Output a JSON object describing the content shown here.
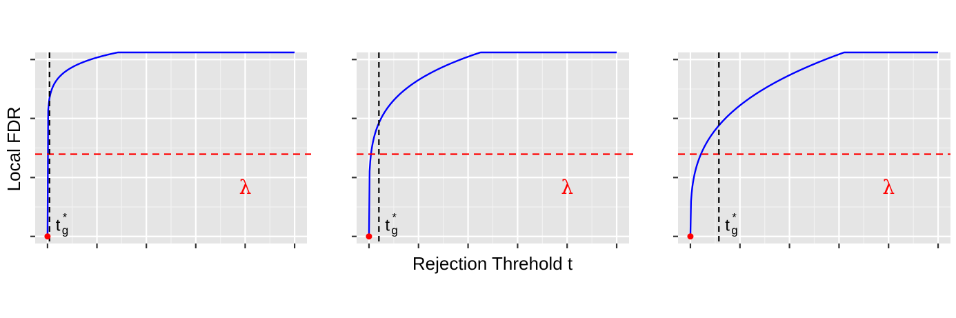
{
  "xlabel": "Rejection Threhold t",
  "ylabel": "Local FDR",
  "colors": {
    "panel_bg": "#e5e5e5",
    "grid_major": "#ffffff",
    "grid_minor": "#f2f2f2",
    "curve": "#0000ff",
    "lambda_line": "#ff0000",
    "threshold_line": "#000000",
    "point": "#ff0000"
  },
  "chart_data": [
    {
      "type": "line",
      "panel": "left",
      "xlim": [
        -0.05,
        1.05
      ],
      "ylim": [
        -0.04,
        1.04
      ],
      "x_ticks": [
        0,
        0.2,
        0.4,
        0.6,
        0.8,
        1.0
      ],
      "y_ticks": [
        0,
        0.333,
        0.667,
        1.0
      ],
      "curve": {
        "exponent": 0.08,
        "ymax": 1.15
      },
      "lambda": 0.465,
      "lambda_label": "λ",
      "lambda_label_pos": [
        0.8,
        0.28
      ],
      "t_star": 0.008,
      "t_star_label": "t",
      "t_star_sub": "g",
      "t_star_sup": "*",
      "point": [
        0,
        0
      ]
    },
    {
      "type": "line",
      "panel": "middle",
      "xlim": [
        -0.05,
        1.05
      ],
      "ylim": [
        -0.04,
        1.04
      ],
      "x_ticks": [
        0,
        0.2,
        0.4,
        0.6,
        0.8,
        1.0
      ],
      "y_ticks": [
        0,
        0.333,
        0.667,
        1.0
      ],
      "curve": {
        "exponent": 0.2,
        "ymax": 1.22
      },
      "lambda": 0.465,
      "lambda_label": "λ",
      "lambda_label_pos": [
        0.8,
        0.28
      ],
      "t_star": 0.04,
      "t_star_label": "t",
      "t_star_sub": "g",
      "t_star_sup": "*",
      "point": [
        0,
        0
      ]
    },
    {
      "type": "line",
      "panel": "right",
      "xlim": [
        -0.05,
        1.05
      ],
      "ylim": [
        -0.04,
        1.04
      ],
      "x_ticks": [
        0,
        0.2,
        0.4,
        0.6,
        0.8,
        1.0
      ],
      "y_ticks": [
        0,
        0.333,
        0.667,
        1.0
      ],
      "curve": {
        "exponent": 0.3,
        "ymax": 1.2
      },
      "lambda": 0.465,
      "lambda_label": "λ",
      "lambda_label_pos": [
        0.8,
        0.28
      ],
      "t_star": 0.115,
      "t_star_label": "t",
      "t_star_sub": "g",
      "t_star_sup": "*",
      "point": [
        0,
        0
      ]
    }
  ]
}
